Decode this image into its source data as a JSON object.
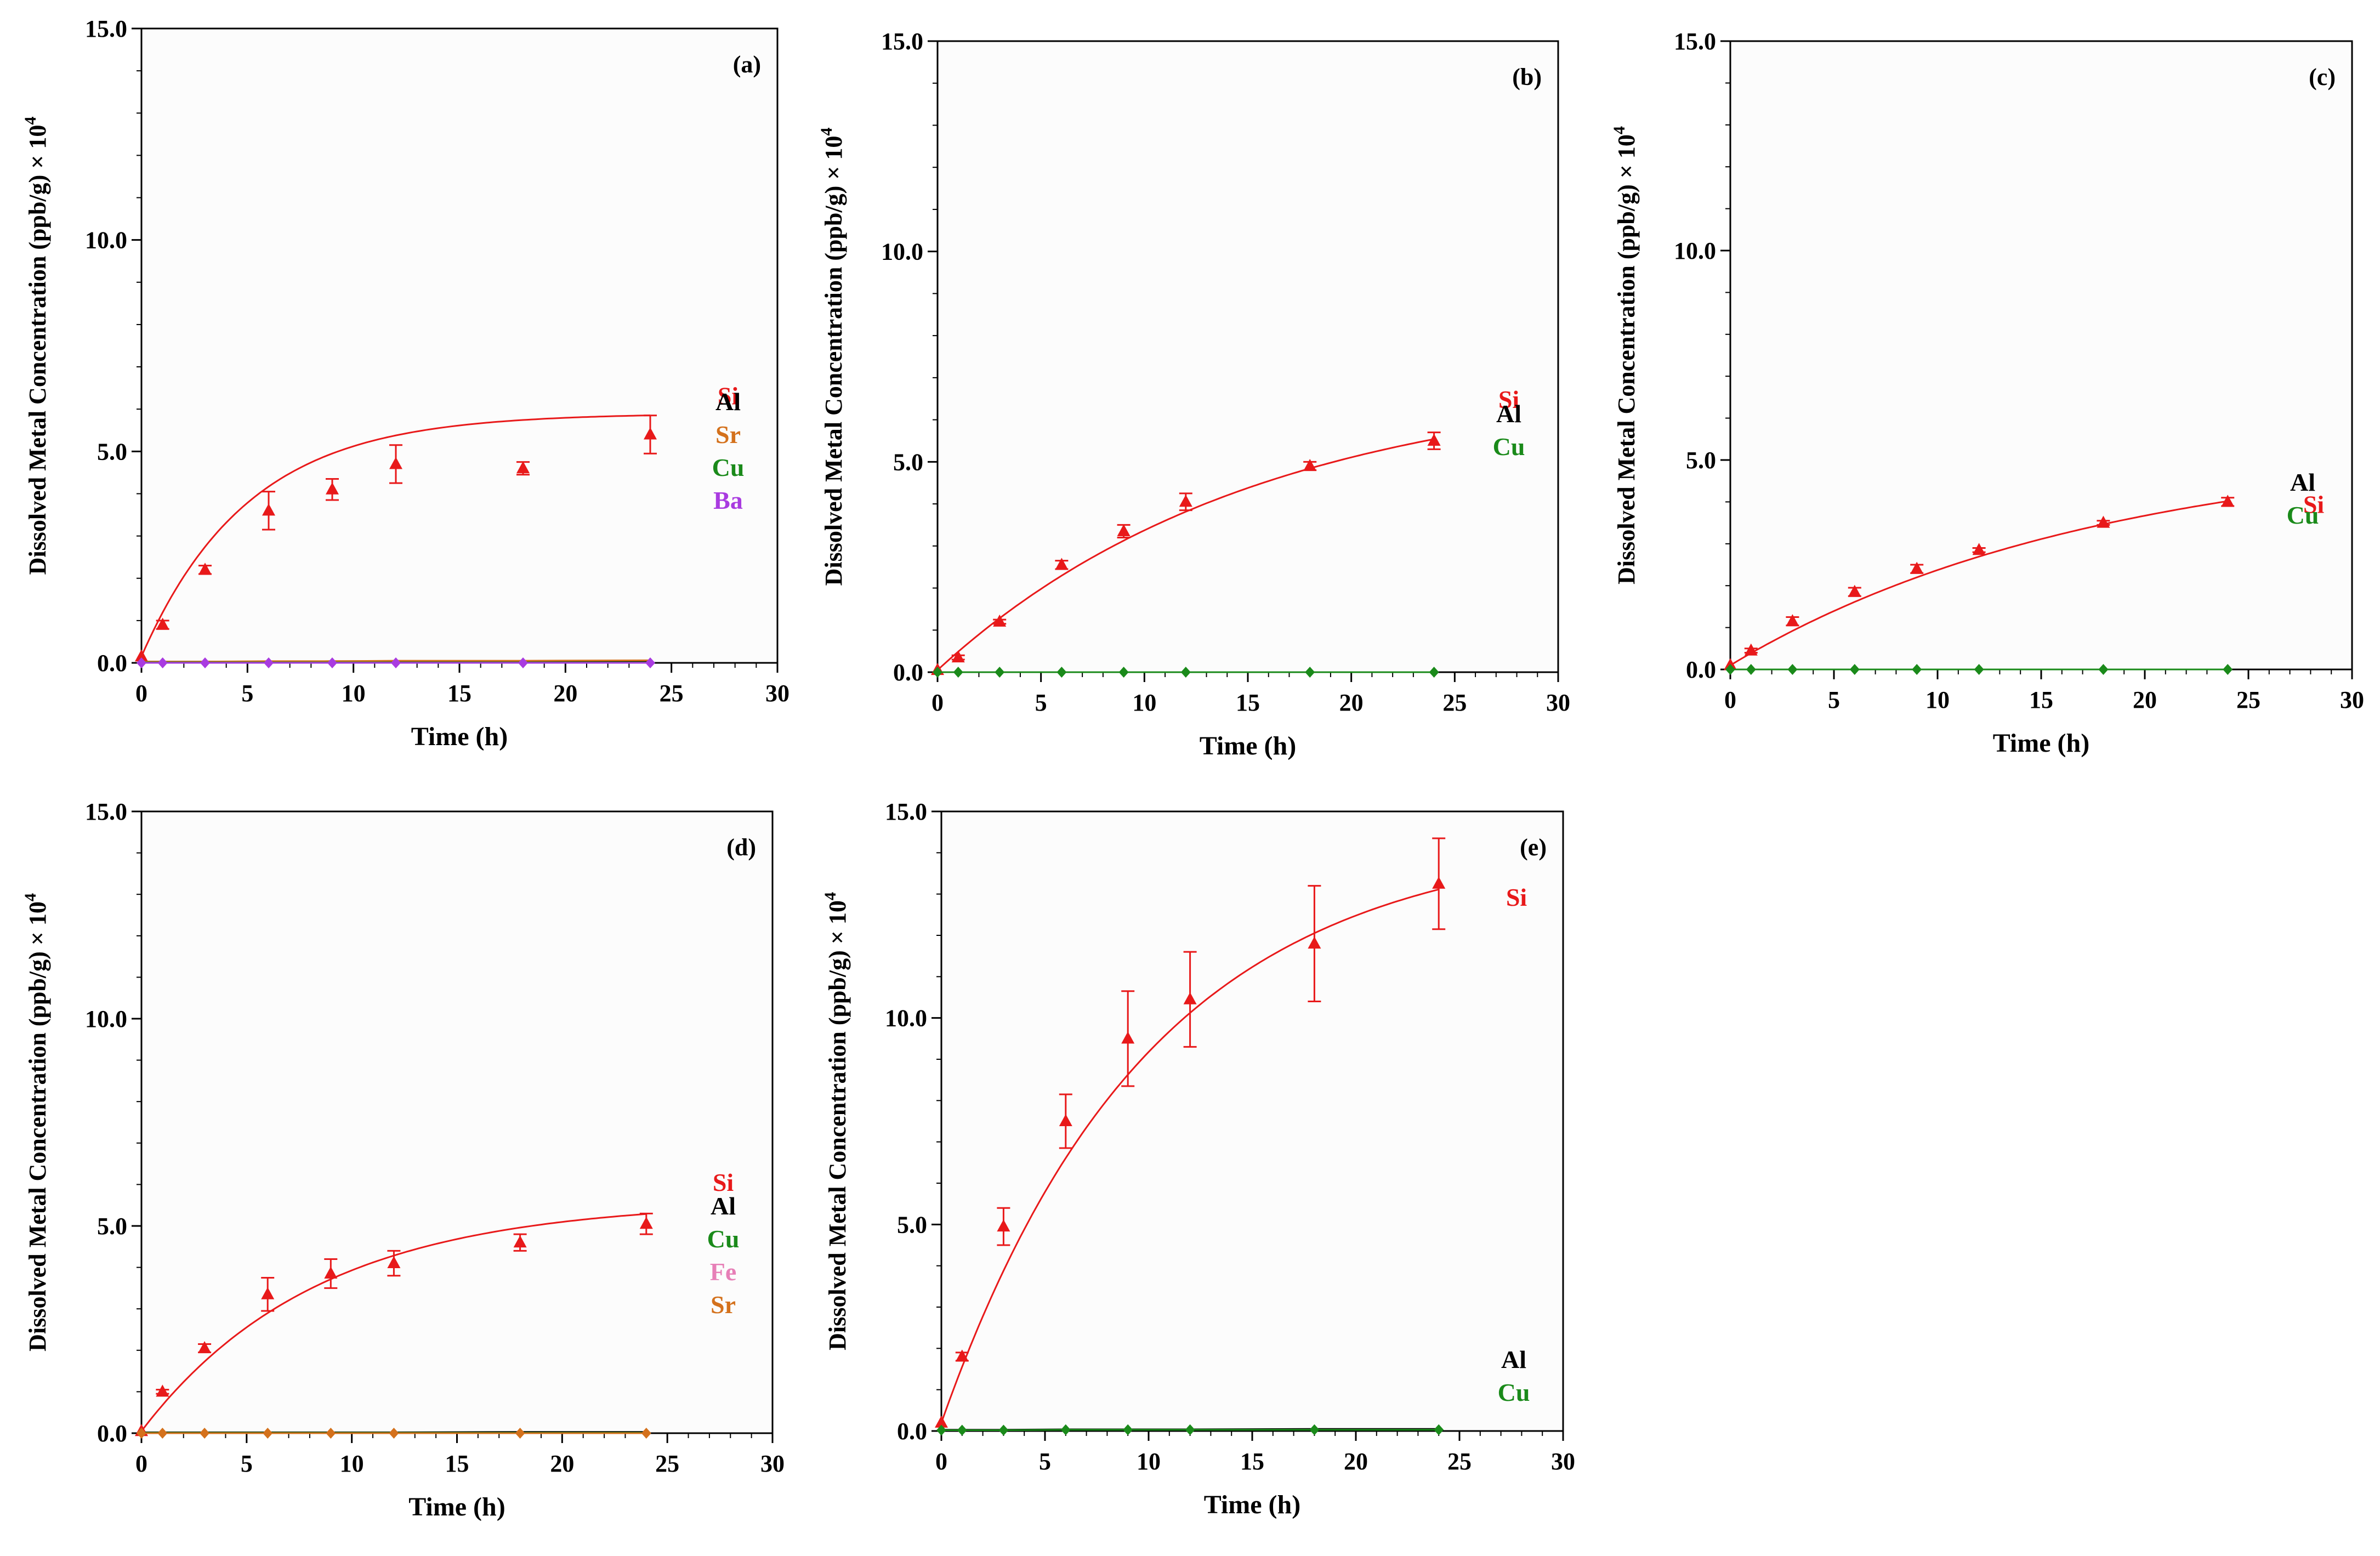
{
  "figure": {
    "description_free": true
  },
  "chart_data": [
    {
      "type": "scatter",
      "panel_label": "(a)",
      "xlabel": "Time (h)",
      "ylabel": "Dissolved Metal Concentration (ppb/g) × 10",
      "ylabel_sup": "4",
      "xlim": [
        0,
        30
      ],
      "ylim": [
        0,
        15
      ],
      "x_ticks": [
        "0",
        "5",
        "10",
        "15",
        "20",
        "25",
        "30"
      ],
      "y_ticks": [
        "0.0",
        "5.0",
        "10.0",
        "15.0"
      ],
      "series": [
        {
          "name": "Si",
          "color": "#e8191a",
          "marker": "triangle",
          "fit": true,
          "x": [
            0,
            1,
            3,
            6,
            9,
            12,
            18,
            24
          ],
          "y": [
            0.15,
            0.9,
            2.2,
            3.6,
            4.1,
            4.7,
            4.6,
            5.4
          ],
          "err": [
            0,
            0.1,
            0.1,
            0.45,
            0.25,
            0.45,
            0.15,
            0.45
          ],
          "fit_plateau": 5.9,
          "fit_k": 0.2
        },
        {
          "name": "Al",
          "color": "#000000",
          "marker": "none",
          "x": [
            0,
            1,
            3,
            6,
            9,
            12,
            18,
            24
          ],
          "y": [
            0.03,
            0.03,
            0.03,
            0.03,
            0.04,
            0.04,
            0.04,
            0.04
          ]
        },
        {
          "name": "Sr",
          "color": "#d4711c",
          "marker": "none",
          "x": [
            0,
            1,
            3,
            6,
            9,
            12,
            18,
            24
          ],
          "y": [
            0.03,
            0.03,
            0.03,
            0.04,
            0.04,
            0.05,
            0.05,
            0.06
          ]
        },
        {
          "name": "Cu",
          "color": "#1a8a1a",
          "marker": "none",
          "x": [
            0,
            1,
            3,
            6,
            9,
            12,
            18,
            24
          ],
          "y": [
            0.01,
            0.01,
            0.01,
            0.01,
            0.01,
            0.01,
            0.01,
            0.01
          ]
        },
        {
          "name": "Ba",
          "color": "#a93be0",
          "marker": "diamond",
          "x": [
            0,
            1,
            3,
            6,
            9,
            12,
            18,
            24
          ],
          "y": [
            0,
            0,
            0,
            0,
            0,
            0,
            0,
            0
          ]
        }
      ]
    },
    {
      "type": "scatter",
      "panel_label": "(b)",
      "xlabel": "Time (h)",
      "ylabel": "Dissolved Metal Concentration (ppb/g) × 10",
      "ylabel_sup": "4",
      "xlim": [
        0,
        30
      ],
      "ylim": [
        0,
        15
      ],
      "x_ticks": [
        "0",
        "5",
        "10",
        "15",
        "20",
        "25",
        "30"
      ],
      "y_ticks": [
        "0.0",
        "5.0",
        "10.0",
        "15.0"
      ],
      "series": [
        {
          "name": "Si",
          "color": "#e8191a",
          "marker": "triangle",
          "fit": true,
          "x": [
            0,
            1,
            3,
            6,
            9,
            12,
            18,
            24
          ],
          "y": [
            0.05,
            0.35,
            1.2,
            2.55,
            3.35,
            4.05,
            4.9,
            5.5
          ],
          "err": [
            0,
            0.05,
            0.05,
            0.1,
            0.15,
            0.2,
            0.1,
            0.2
          ],
          "fit_plateau": 7.0,
          "fit_k": 0.065
        },
        {
          "name": "Al",
          "color": "#000000",
          "marker": "none",
          "x": [
            0,
            1,
            3,
            6,
            9,
            12,
            18,
            24
          ],
          "y": [
            0,
            0,
            0,
            0,
            0,
            0,
            0,
            0
          ]
        },
        {
          "name": "Cu",
          "color": "#1a8a1a",
          "marker": "diamond",
          "x": [
            0,
            1,
            3,
            6,
            9,
            12,
            18,
            24
          ],
          "y": [
            0,
            0,
            0,
            0,
            0,
            0,
            0,
            0
          ]
        }
      ]
    },
    {
      "type": "scatter",
      "panel_label": "(c)",
      "xlabel": "Time (h)",
      "ylabel": "Dissolved Metal Concentration (ppb/g) × 10",
      "ylabel_sup": "4",
      "xlim": [
        0,
        30
      ],
      "ylim": [
        0,
        15
      ],
      "x_ticks": [
        "0",
        "5",
        "10",
        "15",
        "20",
        "25",
        "30"
      ],
      "y_ticks": [
        "0.0",
        "5.0",
        "10.0",
        "15.0"
      ],
      "series": [
        {
          "name": "Si",
          "color": "#e8191a",
          "marker": "triangle",
          "fit": true,
          "x": [
            0,
            1,
            3,
            6,
            9,
            12,
            18,
            24
          ],
          "y": [
            0.1,
            0.45,
            1.15,
            1.85,
            2.4,
            2.85,
            3.5,
            4.0
          ],
          "err": [
            0,
            0.05,
            0.1,
            0.1,
            0.1,
            0.05,
            0.05,
            0.1
          ],
          "fit_plateau": 5.4,
          "fit_k": 0.056
        },
        {
          "name": "Al",
          "color": "#000000",
          "marker": "none",
          "x": [
            0,
            1,
            3,
            6,
            9,
            12,
            18,
            24
          ],
          "y": [
            0,
            0,
            0,
            0,
            0,
            0,
            0,
            0
          ]
        },
        {
          "name": "Cu",
          "color": "#1a8a1a",
          "marker": "diamond",
          "x": [
            0,
            1,
            3,
            6,
            9,
            12,
            18,
            24
          ],
          "y": [
            0,
            0,
            0,
            0,
            0,
            0,
            0,
            0
          ]
        }
      ]
    },
    {
      "type": "scatter",
      "panel_label": "(d)",
      "xlabel": "Time (h)",
      "ylabel": "Dissolved Metal Concentration (ppb/g) × 10",
      "ylabel_sup": "4",
      "xlim": [
        0,
        30
      ],
      "ylim": [
        0,
        15
      ],
      "x_ticks": [
        "0",
        "5",
        "10",
        "15",
        "20",
        "25",
        "30"
      ],
      "y_ticks": [
        "0.0",
        "5.0",
        "10.0",
        "15.0"
      ],
      "series": [
        {
          "name": "Si",
          "color": "#e8191a",
          "marker": "triangle",
          "fit": true,
          "x": [
            0,
            1,
            3,
            6,
            9,
            12,
            18,
            24
          ],
          "y": [
            0.05,
            1.0,
            2.05,
            3.35,
            3.85,
            4.1,
            4.6,
            5.05
          ],
          "err": [
            0,
            0.05,
            0.1,
            0.4,
            0.35,
            0.3,
            0.2,
            0.25
          ],
          "fit_plateau": 5.6,
          "fit_k": 0.12
        },
        {
          "name": "Al",
          "color": "#000000",
          "marker": "none",
          "x": [
            0,
            1,
            3,
            6,
            9,
            12,
            18,
            24
          ],
          "y": [
            0.02,
            0.02,
            0.02,
            0.02,
            0.02,
            0.02,
            0.03,
            0.03
          ]
        },
        {
          "name": "Cu",
          "color": "#1a8a1a",
          "marker": "none",
          "x": [
            0,
            1,
            3,
            6,
            9,
            12,
            18,
            24
          ],
          "y": [
            0.01,
            0.01,
            0.01,
            0.01,
            0.01,
            0.01,
            0.01,
            0.01
          ]
        },
        {
          "name": "Fe",
          "color": "#e77fb7",
          "marker": "none",
          "x": [
            0,
            1,
            3,
            6,
            9,
            12,
            18,
            24
          ],
          "y": [
            0,
            0,
            0,
            0,
            0,
            0,
            0,
            0
          ]
        },
        {
          "name": "Sr",
          "color": "#d4711c",
          "marker": "diamond",
          "x": [
            0,
            1,
            3,
            6,
            9,
            12,
            18,
            24
          ],
          "y": [
            0,
            0,
            0,
            0,
            0,
            0,
            0,
            0
          ]
        }
      ]
    },
    {
      "type": "scatter",
      "panel_label": "(e)",
      "xlabel": "Time (h)",
      "ylabel": "Dissolved Metal Concentration (ppb/g) × 10",
      "ylabel_sup": "4",
      "xlim": [
        0,
        30
      ],
      "ylim": [
        0,
        15
      ],
      "x_ticks": [
        "0",
        "5",
        "10",
        "15",
        "20",
        "25",
        "30"
      ],
      "y_ticks": [
        "0.0",
        "5.0",
        "10.0",
        "15.0"
      ],
      "series": [
        {
          "name": "Si",
          "color": "#e8191a",
          "marker": "triangle",
          "fit": true,
          "x": [
            0,
            1,
            3,
            6,
            9,
            12,
            18,
            24
          ],
          "y": [
            0.2,
            1.8,
            4.95,
            7.5,
            9.5,
            10.45,
            11.8,
            13.25
          ],
          "err": [
            0,
            0.1,
            0.45,
            0.65,
            1.15,
            1.15,
            1.4,
            1.1
          ],
          "fit_plateau": 14.4,
          "fit_k": 0.1
        },
        {
          "name": "Al",
          "color": "#000000",
          "marker": "none",
          "x": [
            0,
            1,
            3,
            6,
            9,
            12,
            18,
            24
          ],
          "y": [
            0.03,
            0.03,
            0.03,
            0.04,
            0.04,
            0.04,
            0.05,
            0.05
          ]
        },
        {
          "name": "Cu",
          "color": "#1a8a1a",
          "marker": "diamond",
          "x": [
            0,
            1,
            3,
            6,
            9,
            12,
            18,
            24
          ],
          "y": [
            0.02,
            0.02,
            0.02,
            0.03,
            0.03,
            0.03,
            0.03,
            0.03
          ]
        }
      ]
    }
  ]
}
